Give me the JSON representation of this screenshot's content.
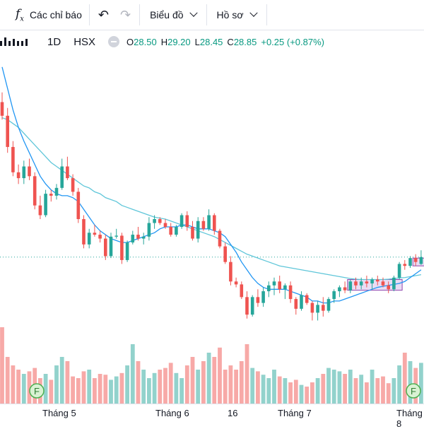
{
  "toolbar": {
    "indicators_label": "Các chỉ báo",
    "chart_label": "Biểu đồ",
    "profile_label": "Hồ sơ"
  },
  "legend": {
    "interval": "1D",
    "exchange": "HSX",
    "open_label": "O",
    "open": "28.50",
    "high_label": "H",
    "high": "29.20",
    "low_label": "L",
    "low": "28.45",
    "close_label": "C",
    "close": "28.85",
    "change": "+0.25 (+0.87%)"
  },
  "colors": {
    "up": "#26a69a",
    "down": "#ef5350",
    "ma_short": "#2196f3",
    "ma_long": "#5fc6d9",
    "box": "#c39be0",
    "earnings_badge": "#4caf50"
  },
  "events": [
    {
      "icon": "earnings-icon",
      "label": "F"
    },
    {
      "icon": "earnings-icon",
      "label": "F"
    }
  ],
  "chart_data": {
    "type": "candlestick",
    "x_labels": [
      "Tháng 5",
      "Tháng 6",
      "16",
      "Tháng 7",
      "Tháng 8"
    ],
    "candles": [
      [
        36.8,
        37.3,
        35.9,
        36.1
      ],
      [
        36.1,
        36.5,
        34.2,
        34.5
      ],
      [
        34.5,
        34.8,
        33.0,
        33.2
      ],
      [
        33.2,
        33.6,
        32.6,
        32.9
      ],
      [
        32.9,
        33.8,
        32.6,
        33.5
      ],
      [
        33.5,
        33.9,
        32.8,
        33.0
      ],
      [
        33.0,
        33.2,
        31.3,
        31.5
      ],
      [
        31.5,
        32.0,
        30.8,
        31.0
      ],
      [
        31.0,
        32.3,
        30.9,
        32.1
      ],
      [
        32.1,
        32.3,
        31.7,
        32.0
      ],
      [
        32.0,
        32.6,
        31.8,
        32.4
      ],
      [
        32.4,
        33.9,
        32.3,
        33.5
      ],
      [
        33.5,
        34.0,
        32.8,
        32.9
      ],
      [
        32.9,
        33.1,
        32.0,
        32.2
      ],
      [
        32.2,
        32.4,
        30.6,
        30.8
      ],
      [
        30.8,
        31.0,
        29.3,
        29.5
      ],
      [
        29.5,
        30.3,
        29.3,
        30.1
      ],
      [
        30.1,
        30.5,
        29.9,
        30.0
      ],
      [
        30.0,
        30.2,
        29.6,
        29.8
      ],
      [
        29.8,
        30.0,
        28.7,
        28.9
      ],
      [
        28.9,
        30.1,
        28.8,
        29.9
      ],
      [
        29.9,
        30.3,
        29.8,
        29.95
      ],
      [
        29.95,
        30.1,
        28.5,
        28.7
      ],
      [
        28.7,
        29.7,
        28.6,
        29.6
      ],
      [
        29.6,
        30.2,
        29.5,
        30.0
      ],
      [
        30.0,
        30.4,
        29.7,
        29.8
      ],
      [
        29.8,
        30.1,
        29.5,
        29.9
      ],
      [
        29.9,
        30.9,
        29.7,
        30.6
      ],
      [
        30.6,
        31.0,
        30.3,
        30.8
      ],
      [
        30.8,
        30.9,
        30.5,
        30.6
      ],
      [
        30.6,
        30.8,
        30.3,
        30.4
      ],
      [
        30.4,
        30.6,
        29.9,
        30.0
      ],
      [
        30.0,
        30.5,
        29.9,
        30.4
      ],
      [
        30.4,
        31.1,
        30.3,
        31.0
      ],
      [
        31.0,
        31.2,
        30.2,
        30.4
      ],
      [
        30.4,
        30.7,
        29.7,
        29.8
      ],
      [
        29.8,
        30.9,
        29.6,
        30.7
      ],
      [
        30.7,
        30.9,
        30.2,
        30.3
      ],
      [
        30.3,
        31.3,
        30.2,
        31.0
      ],
      [
        31.0,
        31.1,
        30.0,
        30.2
      ],
      [
        30.2,
        30.3,
        29.3,
        29.4
      ],
      [
        29.4,
        29.6,
        28.5,
        28.6
      ],
      [
        28.6,
        28.9,
        27.4,
        27.6
      ],
      [
        27.6,
        27.8,
        27.3,
        27.45
      ],
      [
        27.45,
        27.6,
        26.7,
        26.8
      ],
      [
        26.8,
        27.1,
        25.7,
        25.9
      ],
      [
        25.9,
        26.9,
        25.8,
        26.8
      ],
      [
        26.8,
        27.2,
        26.3,
        26.5
      ],
      [
        26.5,
        27.3,
        26.3,
        27.1
      ],
      [
        27.1,
        27.6,
        26.8,
        27.4
      ],
      [
        27.4,
        27.8,
        26.9,
        27.6
      ],
      [
        27.6,
        27.9,
        27.0,
        27.2
      ],
      [
        27.2,
        27.5,
        26.7,
        27.4
      ],
      [
        27.4,
        27.6,
        26.5,
        26.7
      ],
      [
        26.7,
        26.8,
        25.9,
        26.2
      ],
      [
        26.2,
        27.1,
        26.1,
        26.9
      ],
      [
        26.9,
        27.0,
        26.4,
        26.5
      ],
      [
        26.5,
        26.6,
        25.6,
        26.0
      ],
      [
        26.0,
        26.6,
        25.6,
        26.4
      ],
      [
        26.4,
        26.8,
        25.8,
        26.1
      ],
      [
        26.1,
        26.8,
        26.0,
        26.7
      ],
      [
        26.7,
        27.2,
        26.5,
        27.1
      ],
      [
        27.1,
        27.4,
        26.8,
        27.3
      ],
      [
        27.3,
        27.6,
        27.0,
        27.15
      ],
      [
        27.15,
        27.7,
        27.0,
        27.6
      ],
      [
        27.6,
        27.8,
        27.2,
        27.4
      ],
      [
        27.4,
        27.8,
        27.2,
        27.6
      ],
      [
        27.6,
        27.9,
        27.3,
        27.5
      ],
      [
        27.5,
        27.8,
        27.2,
        27.7
      ],
      [
        27.7,
        27.9,
        27.4,
        27.6
      ],
      [
        27.6,
        27.8,
        27.3,
        27.4
      ],
      [
        27.4,
        27.6,
        27.0,
        27.2
      ],
      [
        27.2,
        27.9,
        27.1,
        27.8
      ],
      [
        27.8,
        28.6,
        27.7,
        28.5
      ],
      [
        28.5,
        28.7,
        28.2,
        28.4
      ],
      [
        28.4,
        28.9,
        28.3,
        28.8
      ],
      [
        28.8,
        29.0,
        28.4,
        28.6
      ],
      [
        28.5,
        29.2,
        28.45,
        28.85
      ]
    ],
    "volume": [
      0.9,
      0.55,
      0.45,
      0.4,
      0.35,
      0.38,
      0.42,
      0.3,
      0.35,
      0.28,
      0.45,
      0.55,
      0.5,
      0.32,
      0.3,
      0.38,
      0.4,
      0.3,
      0.35,
      0.34,
      0.28,
      0.32,
      0.36,
      0.45,
      0.7,
      0.5,
      0.4,
      0.3,
      0.36,
      0.4,
      0.42,
      0.48,
      0.36,
      0.3,
      0.45,
      0.55,
      0.4,
      0.5,
      0.6,
      0.55,
      0.66,
      0.4,
      0.45,
      0.4,
      0.5,
      0.7,
      0.42,
      0.38,
      0.34,
      0.3,
      0.4,
      0.32,
      0.3,
      0.25,
      0.28,
      0.22,
      0.2,
      0.25,
      0.3,
      0.35,
      0.42,
      0.4,
      0.38,
      0.35,
      0.4,
      0.3,
      0.34,
      0.25,
      0.4,
      0.3,
      0.32,
      0.24,
      0.3,
      0.45,
      0.6,
      0.5,
      0.42,
      0.48
    ],
    "ma_short": [
      38.6,
      37.5,
      36.4,
      35.5,
      34.8,
      34.2,
      33.6,
      33.0,
      32.6,
      32.3,
      32.1,
      32.0,
      32.0,
      31.9,
      31.7,
      31.3,
      30.9,
      30.5,
      30.2,
      30.0,
      29.8,
      29.7,
      29.6,
      29.6,
      29.7,
      29.8,
      29.9,
      30.0,
      30.1,
      30.3,
      30.4,
      30.4,
      30.4,
      30.5,
      30.5,
      30.4,
      30.3,
      30.3,
      30.3,
      30.2,
      30.1,
      29.9,
      29.5,
      29.1,
      28.6,
      28.2,
      27.8,
      27.5,
      27.3,
      27.2,
      27.2,
      27.2,
      27.2,
      27.1,
      27.0,
      26.9,
      26.8,
      26.6,
      26.6,
      26.5,
      26.5,
      26.6,
      26.6,
      26.7,
      26.8,
      26.9,
      27.0,
      27.1,
      27.2,
      27.3,
      27.35,
      27.4,
      27.45,
      27.5,
      27.6,
      27.8,
      28.0,
      28.2
    ],
    "ma_long": [
      36.0,
      35.9,
      35.7,
      35.5,
      35.2,
      34.9,
      34.6,
      34.3,
      34.0,
      33.7,
      33.5,
      33.3,
      33.1,
      32.9,
      32.7,
      32.5,
      32.4,
      32.2,
      32.1,
      31.9,
      31.8,
      31.7,
      31.5,
      31.4,
      31.3,
      31.2,
      31.1,
      31.0,
      30.9,
      30.85,
      30.8,
      30.7,
      30.6,
      30.5,
      30.4,
      30.3,
      30.2,
      30.1,
      30.0,
      29.9,
      29.75,
      29.6,
      29.45,
      29.3,
      29.15,
      29.0,
      28.9,
      28.8,
      28.7,
      28.6,
      28.5,
      28.4,
      28.35,
      28.3,
      28.25,
      28.2,
      28.15,
      28.1,
      28.05,
      28.0,
      27.95,
      27.9,
      27.85,
      27.8,
      27.75,
      27.72,
      27.7,
      27.7,
      27.7,
      27.7,
      27.7,
      27.72,
      27.75,
      27.78,
      27.8,
      27.85,
      27.9,
      27.95
    ],
    "boxes": [
      {
        "from": 64,
        "to": 73,
        "low": 27.15,
        "high": 27.7
      },
      {
        "from": 76,
        "to": 78,
        "low": 28.4,
        "high": 28.8
      }
    ]
  }
}
